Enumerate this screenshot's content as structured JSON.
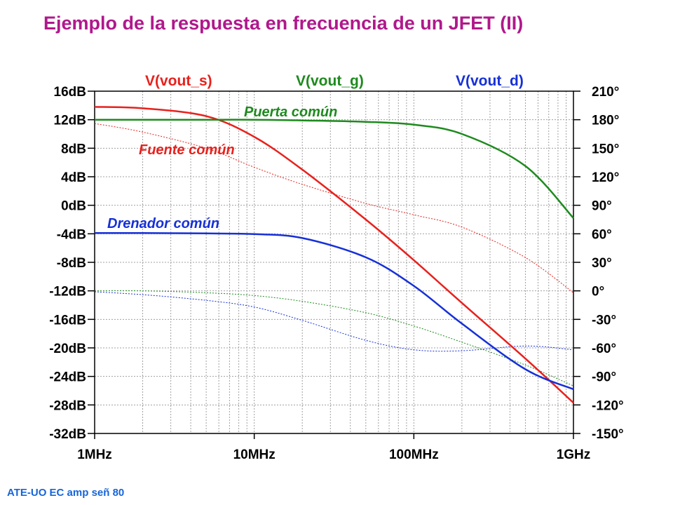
{
  "title": "Ejemplo de la respuesta en frecuencia de un JFET (II)",
  "footer": "ATE-UO EC amp señ 80",
  "colors": {
    "title": "#b0188c",
    "footer": "#1565d8",
    "fuente": "#e8211d",
    "puerta": "#1e8a1e",
    "drenador": "#1630d8",
    "grid": "#a0a0a0"
  },
  "chart_data": {
    "type": "line",
    "x_scale": "log",
    "xlim": [
      1000000,
      1000000000
    ],
    "x_ticks": [
      {
        "value": 1000000,
        "label": "1MHz"
      },
      {
        "value": 10000000,
        "label": "10MHz"
      },
      {
        "value": 100000000,
        "label": "100MHz"
      },
      {
        "value": 1000000000,
        "label": "1GHz"
      }
    ],
    "ylim_left": [
      -32,
      16
    ],
    "y_ticks_left": [
      "16dB",
      "12dB",
      "8dB",
      "4dB",
      "0dB",
      "-4dB",
      "-8dB",
      "-12dB",
      "-16dB",
      "-20dB",
      "-24dB",
      "-28dB",
      "-32dB"
    ],
    "ylim_right": [
      -150,
      210
    ],
    "y_ticks_right": [
      "210°",
      "180°",
      "150°",
      "120°",
      "90°",
      "60°",
      "30°",
      "0°",
      "-30°",
      "-60°",
      "-90°",
      "-120°",
      "-150°"
    ],
    "legend": [
      "V(vout_s)",
      "V(vout_g)",
      "V(vout_d)"
    ],
    "annotations": [
      "Puerta común",
      "Fuente común",
      "Drenador común"
    ],
    "grid": true,
    "x": [
      1000000,
      2000000,
      5000000,
      10000000,
      20000000,
      50000000,
      100000000,
      200000000,
      500000000,
      1000000000
    ],
    "series": [
      {
        "name": "V(vout_s)",
        "color": "#e8211d",
        "magnitude_db": [
          13.8,
          13.6,
          12.5,
          9.6,
          5.0,
          -2.0,
          -7.7,
          -13.7,
          -21.5,
          -27.7
        ],
        "phase_deg": [
          176,
          167,
          150,
          130,
          112,
          92,
          80,
          67,
          35,
          -2
        ]
      },
      {
        "name": "V(vout_g)",
        "color": "#1e8a1e",
        "magnitude_db": [
          12,
          12,
          12,
          12,
          11.9,
          11.7,
          11.3,
          10.0,
          5.5,
          -1.8
        ],
        "phase_deg": [
          0,
          0,
          -2,
          -5,
          -11,
          -23,
          -37,
          -54,
          -78,
          -100
        ]
      },
      {
        "name": "V(vout_d)",
        "color": "#1630d8",
        "magnitude_db": [
          -3.9,
          -3.9,
          -3.95,
          -4.05,
          -4.6,
          -7.3,
          -11.3,
          -16.6,
          -23.0,
          -25.8
        ],
        "phase_deg": [
          -1,
          -4,
          -10,
          -17,
          -31,
          -52,
          -62,
          -63,
          -58,
          -62
        ]
      }
    ]
  }
}
